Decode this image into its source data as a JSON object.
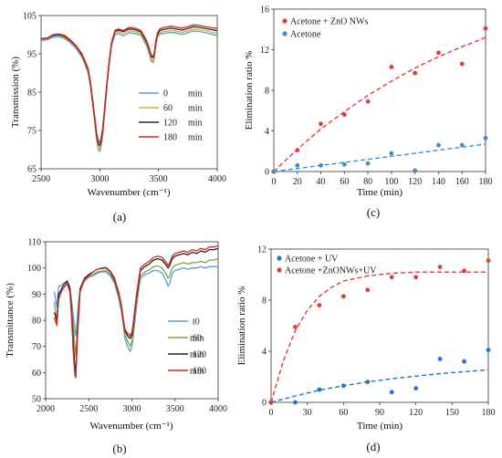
{
  "panel_labels": [
    "(a)",
    "(b)",
    "(c)",
    "(d)"
  ],
  "chart_data": [
    {
      "panel": "(a)",
      "type": "line",
      "xlabel": "Wavenumber (cm⁻¹)",
      "ylabel": "Transmission (%)",
      "xlim": [
        2500,
        4000
      ],
      "ylim": [
        65,
        105
      ],
      "xticks": [
        2500,
        3000,
        3500,
        4000
      ],
      "yticks": [
        65,
        75,
        85,
        95,
        105
      ],
      "grid": false,
      "legend_position": "center",
      "x": [
        2500,
        2550,
        2600,
        2650,
        2700,
        2750,
        2800,
        2850,
        2870,
        2900,
        2920,
        2940,
        2960,
        2975,
        2990,
        3000,
        3010,
        3025,
        3040,
        3060,
        3080,
        3100,
        3130,
        3160,
        3200,
        3250,
        3300,
        3350,
        3400,
        3420,
        3440,
        3455,
        3465,
        3475,
        3490,
        3510,
        3550,
        3600,
        3650,
        3700,
        3750,
        3800,
        3850,
        3900,
        3950,
        4000
      ],
      "series": [
        {
          "name": "0",
          "unit": "min",
          "color": "#5b9bd5",
          "values": [
            98.5,
            98.6,
            99.3,
            99.5,
            99,
            97.8,
            96.3,
            94,
            92.5,
            90,
            86.5,
            81.5,
            76,
            72,
            69.8,
            69.5,
            70.5,
            73.5,
            79,
            86,
            92,
            97,
            100,
            100.3,
            99.7,
            100.5,
            100.3,
            99.8,
            97,
            95,
            93,
            92.7,
            94,
            96.5,
            99.2,
            100.2,
            100.3,
            100.6,
            100.4,
            100.1,
            100.5,
            101,
            100.8,
            100.5,
            100.1,
            99.8
          ]
        },
        {
          "name": "60",
          "unit": "min",
          "color": "#c9b433",
          "values": [
            98.8,
            98.9,
            99.6,
            99.8,
            99.3,
            98.1,
            96.6,
            94.3,
            92.8,
            90.3,
            86.8,
            81.8,
            76.4,
            72.5,
            70.4,
            70.2,
            71.2,
            74.2,
            79.5,
            86.5,
            92.4,
            97.4,
            100.5,
            100.8,
            100.3,
            101,
            100.8,
            100.2,
            97.5,
            95.5,
            93.5,
            93.2,
            94.5,
            97,
            99.6,
            100.6,
            100.8,
            101.1,
            100.9,
            100.6,
            101,
            101.5,
            101.3,
            101,
            100.6,
            100.4
          ]
        },
        {
          "name": "120",
          "unit": "min",
          "color": "#2b2b2b",
          "values": [
            98.9,
            99,
            99.8,
            100,
            99.6,
            98.4,
            96.9,
            94.6,
            93.2,
            90.8,
            87.4,
            82.4,
            77.2,
            73.4,
            71.3,
            71,
            72,
            75,
            80.2,
            87,
            92.8,
            97.8,
            100.9,
            101.2,
            100.8,
            101.5,
            101.3,
            100.7,
            98,
            96.2,
            94.2,
            94,
            95.2,
            97.6,
            100,
            101.1,
            101.4,
            101.7,
            101.5,
            101.2,
            101.6,
            102.1,
            101.9,
            101.6,
            101.3,
            101
          ]
        },
        {
          "name": "180",
          "unit": "min",
          "color": "#d62728",
          "values": [
            99,
            99.1,
            100,
            100.2,
            99.8,
            98.6,
            97.1,
            94.9,
            93.5,
            91.2,
            87.9,
            83,
            77.8,
            74,
            72,
            71.8,
            72.8,
            75.7,
            80.8,
            87.5,
            93.2,
            98.1,
            101.2,
            101.5,
            101.1,
            101.9,
            101.7,
            101.1,
            98.4,
            96.6,
            94.6,
            94.4,
            95.6,
            98,
            100.4,
            101.5,
            101.9,
            102.2,
            102,
            101.7,
            102.1,
            102.6,
            102.4,
            102.1,
            101.8,
            101.6
          ]
        }
      ]
    },
    {
      "panel": "(c)",
      "type": "scatter",
      "xlabel": "Time (min)",
      "ylabel": "Elimination ratio %",
      "xlim": [
        0,
        180
      ],
      "ylim": [
        0,
        16
      ],
      "xticks": [
        0,
        20,
        40,
        60,
        80,
        100,
        120,
        140,
        160,
        180
      ],
      "yticks": [
        0,
        4,
        8,
        12,
        16
      ],
      "grid": false,
      "legend_position": "top-left",
      "series": [
        {
          "name": "Acetone + ZnO NWs",
          "color": "#e23b3b",
          "x": [
            0,
            20,
            40,
            60,
            80,
            100,
            120,
            140,
            160,
            180
          ],
          "values": [
            0,
            2.1,
            4.7,
            5.6,
            6.9,
            10.3,
            9.7,
            11.7,
            10.6,
            14.1
          ]
        },
        {
          "name": "Acetone",
          "color": "#3d8fd1",
          "x": [
            0,
            20,
            40,
            60,
            80,
            100,
            120,
            140,
            160,
            180
          ],
          "values": [
            0,
            0.6,
            0.6,
            0.7,
            0.8,
            1.8,
            0.1,
            2.6,
            2.6,
            3.3
          ]
        }
      ],
      "fits": [
        {
          "color": "#e23b3b",
          "x": [
            0,
            20,
            40,
            60,
            80,
            100,
            120,
            140,
            160,
            180
          ],
          "values": [
            0,
            2.2,
            4.2,
            5.9,
            7.5,
            8.9,
            10.2,
            11.3,
            12.3,
            13.2
          ]
        },
        {
          "color": "#3d8fd1",
          "x": [
            0,
            20,
            40,
            60,
            80,
            100,
            120,
            140,
            160,
            180
          ],
          "values": [
            0,
            0.3,
            0.6,
            0.9,
            1.2,
            1.5,
            1.8,
            2.1,
            2.4,
            2.7
          ]
        }
      ]
    },
    {
      "panel": "(b)",
      "type": "line",
      "xlabel": "Wavenumber (cm⁻¹)",
      "ylabel": "Transmittance (%)",
      "xlim": [
        2000,
        4000
      ],
      "ylim": [
        50,
        110
      ],
      "xticks": [
        2000,
        2500,
        3000,
        3500,
        4000
      ],
      "yticks": [
        50,
        60,
        70,
        80,
        90,
        100,
        110
      ],
      "grid": false,
      "legend_position": "bottom-right",
      "x": [
        2100,
        2130,
        2150,
        2170,
        2200,
        2250,
        2280,
        2300,
        2320,
        2340,
        2350,
        2360,
        2380,
        2400,
        2450,
        2500,
        2550,
        2600,
        2650,
        2700,
        2750,
        2800,
        2850,
        2880,
        2900,
        2920,
        2950,
        2980,
        3000,
        3020,
        3050,
        3080,
        3100,
        3150,
        3200,
        3250,
        3300,
        3350,
        3400,
        3420,
        3440,
        3460,
        3480,
        3500,
        3550,
        3600,
        3650,
        3700,
        3750,
        3800,
        3850,
        3900,
        3950,
        4000
      ],
      "series": [
        {
          "name": "t0",
          "unit": "",
          "color": "#5b9bd5",
          "values": [
            91,
            85,
            93,
            93,
            94,
            95,
            93,
            88,
            82,
            76,
            74,
            78,
            86,
            92,
            95,
            96.5,
            97,
            98,
            98.5,
            98.5,
            97,
            94,
            88,
            83,
            78,
            73,
            70,
            68,
            70,
            75,
            84,
            92,
            96,
            97.5,
            98,
            99,
            99,
            98,
            95,
            93,
            94,
            97,
            98.5,
            99,
            99.5,
            100,
            99.5,
            100,
            100,
            100.5,
            100,
            100.5,
            100.5,
            100.5
          ]
        },
        {
          "name": "60",
          "unit": "min",
          "color": "#7aa83f",
          "values": [
            87,
            79,
            88,
            90,
            92,
            94,
            92,
            86,
            78,
            70,
            66,
            72,
            84,
            92,
            95,
            96.5,
            97.5,
            98.5,
            98.8,
            99,
            97.5,
            94.5,
            89,
            84,
            79,
            74.5,
            72,
            70,
            72,
            77,
            86,
            93,
            97,
            98.5,
            99.2,
            100.5,
            100.8,
            100,
            97.5,
            96,
            97,
            99.5,
            100.5,
            101,
            101.5,
            102,
            101.5,
            102,
            102,
            102.5,
            102,
            103,
            103,
            103.5
          ]
        },
        {
          "name": "120",
          "unit": "min",
          "color": "#222222",
          "values": [
            83,
            80,
            90,
            91,
            93,
            95,
            92,
            84,
            72,
            62,
            60,
            68,
            82,
            92,
            96,
            97.5,
            98.5,
            99.5,
            99.8,
            100,
            98.5,
            95.5,
            90,
            85,
            80,
            76,
            74,
            73,
            74.5,
            79,
            88,
            95,
            99,
            100.5,
            101.5,
            103,
            103.5,
            103,
            101,
            100,
            101,
            103,
            104,
            104.5,
            105,
            105.5,
            105,
            106,
            105.5,
            106.5,
            106,
            107,
            107,
            107.5
          ]
        },
        {
          "name": "180",
          "unit": "min",
          "color": "#d62728",
          "values": [
            81,
            78,
            88,
            90,
            92,
            94,
            91,
            82,
            68,
            59,
            58,
            66,
            80,
            91,
            95.5,
            97,
            98.5,
            99.5,
            100,
            100.2,
            98.8,
            96,
            90.5,
            85.5,
            80.5,
            76.5,
            75,
            74,
            75.5,
            80,
            89,
            96,
            100,
            101.5,
            102.5,
            104,
            104.5,
            104,
            102,
            101,
            102,
            104,
            105,
            105.5,
            106,
            106.5,
            106,
            107,
            106.5,
            107.5,
            107,
            108,
            108,
            108.5
          ]
        }
      ]
    },
    {
      "panel": "(d)",
      "type": "scatter",
      "xlabel": "Time (min)",
      "ylabel": "Elimination ratio %",
      "xlim": [
        0,
        180
      ],
      "ylim": [
        0,
        12
      ],
      "xticks": [
        0,
        30,
        60,
        90,
        120,
        150,
        180
      ],
      "yticks": [
        0,
        4,
        8,
        12
      ],
      "grid": false,
      "legend_position": "top-left",
      "series": [
        {
          "name": "Acetone + UV",
          "color": "#1f77d2",
          "x": [
            0,
            20,
            40,
            60,
            80,
            100,
            120,
            140,
            160,
            180
          ],
          "values": [
            0,
            0,
            1,
            1.3,
            1.6,
            0.8,
            1.1,
            3.4,
            3.2,
            4.1
          ]
        },
        {
          "name": "Acetone +ZnONWs+UV",
          "color": "#e23b3b",
          "x": [
            0,
            20,
            40,
            60,
            80,
            100,
            120,
            140,
            160,
            180
          ],
          "values": [
            0,
            5.9,
            7.6,
            8.3,
            8.8,
            9.8,
            9.8,
            10.6,
            10.3,
            11.1
          ]
        }
      ],
      "fits": [
        {
          "color": "#1f77d2",
          "x": [
            0,
            20,
            40,
            60,
            80,
            100,
            120,
            140,
            160,
            180
          ],
          "values": [
            0,
            0.5,
            0.95,
            1.3,
            1.6,
            1.85,
            2.05,
            2.25,
            2.4,
            2.55
          ]
        },
        {
          "color": "#e23b3b",
          "x": [
            0,
            10,
            20,
            30,
            40,
            50,
            60,
            80,
            100,
            120,
            140,
            160,
            180
          ],
          "values": [
            0,
            3.2,
            5.6,
            7.2,
            8.3,
            9,
            9.5,
            9.9,
            10.1,
            10.2,
            10.2,
            10.2,
            10.2
          ]
        }
      ]
    }
  ]
}
